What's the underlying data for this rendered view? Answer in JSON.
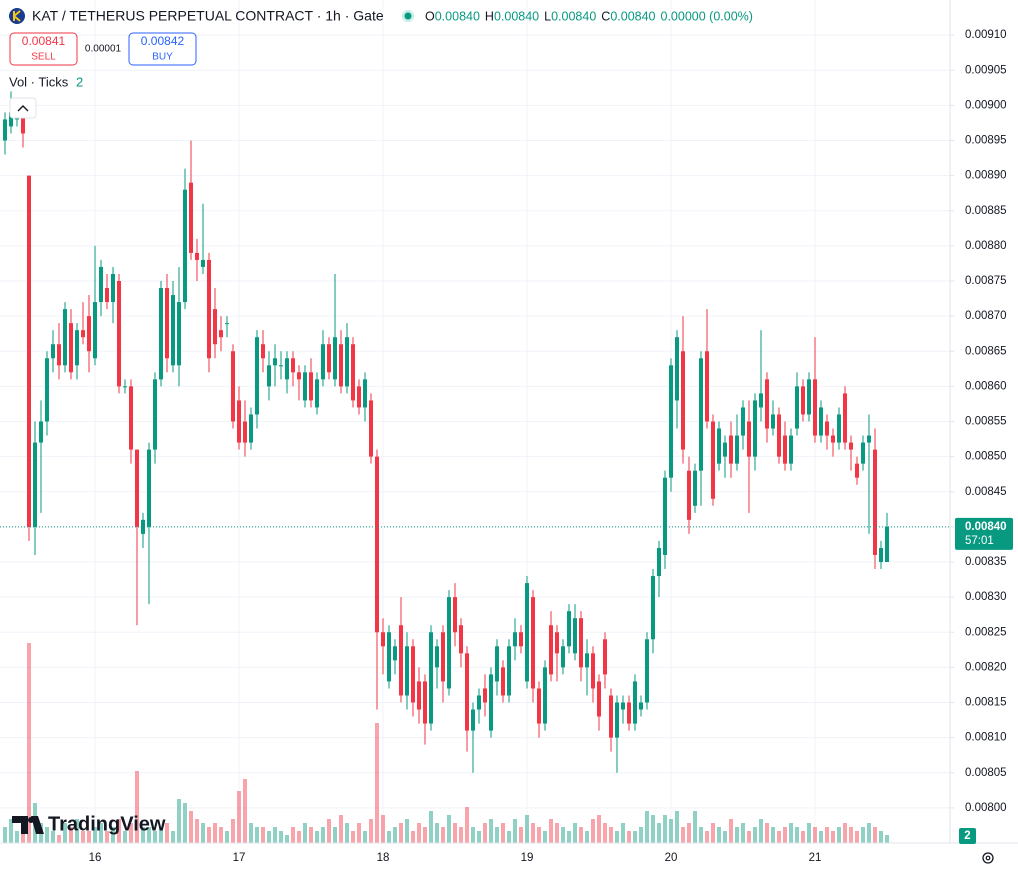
{
  "chart_data": {
    "type": "candlestick",
    "title": "KAT / TETHERUS PERPETUAL CONTRACT · 1h · Gate",
    "readout": [
      {
        "key": "O",
        "value": "0.00840"
      },
      {
        "key": "H",
        "value": "0.00840"
      },
      {
        "key": "L",
        "value": "0.00840"
      },
      {
        "key": "C",
        "value": "0.00840"
      }
    ],
    "change": "0.00000 (0.00%)",
    "order_panel": {
      "sell_price": "0.00841",
      "sell_label": "SELL",
      "spread": "0.00001",
      "buy_price": "0.00842",
      "buy_label": "BUY"
    },
    "volume_label": "Vol · Ticks",
    "watermark": "TradingView",
    "up_color": "#089981",
    "down_color": "#f23645",
    "grid": true,
    "last_price": {
      "value": 0.0084,
      "label": "0.00840"
    },
    "countdown": "57:01",
    "ylim": [
      0.00795,
      0.00915
    ],
    "yticks": [
      {
        "value": 0.008,
        "label": "0.00800"
      },
      {
        "value": 0.00805,
        "label": "0.00805"
      },
      {
        "value": 0.0081,
        "label": "0.00810"
      },
      {
        "value": 0.00815,
        "label": "0.00815"
      },
      {
        "value": 0.0082,
        "label": "0.00820"
      },
      {
        "value": 0.00825,
        "label": "0.00825"
      },
      {
        "value": 0.0083,
        "label": "0.00830"
      },
      {
        "value": 0.00835,
        "label": "0.00835"
      },
      {
        "value": 0.0084,
        "label": "0.00840"
      },
      {
        "value": 0.00845,
        "label": "0.00845"
      },
      {
        "value": 0.0085,
        "label": "0.00850"
      },
      {
        "value": 0.00855,
        "label": "0.00855"
      },
      {
        "value": 0.0086,
        "label": "0.00860"
      },
      {
        "value": 0.00865,
        "label": "0.00865"
      },
      {
        "value": 0.0087,
        "label": "0.00870"
      },
      {
        "value": 0.00875,
        "label": "0.00875"
      },
      {
        "value": 0.0088,
        "label": "0.00880"
      },
      {
        "value": 0.00885,
        "label": "0.00885"
      },
      {
        "value": 0.0089,
        "label": "0.00890"
      },
      {
        "value": 0.00895,
        "label": "0.00895"
      },
      {
        "value": 0.009,
        "label": "0.00900"
      },
      {
        "value": 0.00905,
        "label": "0.00905"
      },
      {
        "value": 0.0091,
        "label": "0.00910"
      }
    ],
    "categories": [
      null,
      null,
      null,
      null,
      null,
      null,
      null,
      null,
      null,
      null,
      null,
      null,
      null,
      null,
      null,
      "16",
      null,
      null,
      null,
      null,
      null,
      null,
      null,
      null,
      null,
      null,
      null,
      null,
      null,
      null,
      null,
      null,
      null,
      null,
      null,
      null,
      null,
      null,
      null,
      "17",
      null,
      null,
      null,
      null,
      null,
      null,
      null,
      null,
      null,
      null,
      null,
      null,
      null,
      null,
      null,
      null,
      null,
      null,
      null,
      null,
      null,
      null,
      null,
      "18",
      null,
      null,
      null,
      null,
      null,
      null,
      null,
      null,
      null,
      null,
      null,
      null,
      null,
      null,
      null,
      null,
      null,
      null,
      null,
      null,
      null,
      null,
      null,
      "19",
      null,
      null,
      null,
      null,
      null,
      null,
      null,
      null,
      null,
      null,
      null,
      null,
      null,
      null,
      null,
      null,
      null,
      null,
      null,
      null,
      null,
      null,
      null,
      "20",
      null,
      null,
      null,
      null,
      null,
      null,
      null,
      null,
      null,
      null,
      null,
      null,
      null,
      null,
      null,
      null,
      null,
      null,
      null,
      null,
      null,
      null,
      null,
      "21",
      null,
      null,
      null,
      null,
      null,
      null,
      null,
      null,
      null,
      null,
      null,
      null
    ],
    "open": [
      0.00895,
      0.00897,
      0.00898,
      0.009,
      0.0089,
      0.0084,
      0.00852,
      0.00855,
      0.00864,
      0.00866,
      0.00863,
      0.00869,
      0.00863,
      0.00868,
      0.0087,
      0.00864,
      0.00872,
      0.00874,
      0.00872,
      0.00875,
      0.0086,
      0.0086,
      0.00851,
      0.00839,
      0.0084,
      0.00851,
      0.00861,
      0.00874,
      0.00863,
      0.00863,
      0.00872,
      0.00889,
      0.00879,
      0.00877,
      0.00878,
      0.00871,
      0.00868,
      0.00869,
      0.00865,
      0.00858,
      0.00855,
      0.00852,
      0.00856,
      0.00866,
      0.0086,
      0.00863,
      0.00863,
      0.00861,
      0.00864,
      0.00862,
      0.00858,
      0.00862,
      0.00857,
      0.00861,
      0.00866,
      0.00861,
      0.00866,
      0.0086,
      0.00866,
      0.0086,
      0.00857,
      0.00858,
      0.0085,
      0.00825,
      0.00818,
      0.00821,
      0.00826,
      0.00816,
      0.00823,
      0.00818,
      0.00818,
      0.00812,
      0.0082,
      0.00825,
      0.00817,
      0.0083,
      0.00826,
      0.00822,
      0.00811,
      0.00814,
      0.00817,
      0.00811,
      0.00818,
      0.0082,
      0.00816,
      0.00823,
      0.00825,
      0.00818,
      0.0083,
      0.00817,
      0.00812,
      0.00826,
      0.00825,
      0.0082,
      0.00823,
      0.00822,
      0.00827,
      0.0082,
      0.00822,
      0.00818,
      0.00824,
      0.00816,
      0.0081,
      0.00814,
      0.00815,
      0.00812,
      0.00814,
      0.00815,
      0.00824,
      0.00833,
      0.00836,
      0.00847,
      0.00858,
      0.00865,
      0.00848,
      0.00843,
      0.00848,
      0.00865,
      0.00855,
      0.00849,
      0.0085,
      0.00853,
      0.00849,
      0.00853,
      0.00855,
      0.0085,
      0.00857,
      0.00861,
      0.00854,
      0.00856,
      0.00853,
      0.00849,
      0.00854,
      0.0086,
      0.00856,
      0.00861,
      0.00853,
      0.00855,
      0.00853,
      0.00852,
      0.00859,
      0.00852,
      0.00849,
      0.00849,
      0.00852,
      0.00851,
      0.00835,
      0.00835
    ],
    "high": [
      0.00899,
      0.00902,
      0.009,
      0.00901,
      0.0089,
      0.00855,
      0.00858,
      0.00865,
      0.00868,
      0.00869,
      0.00872,
      0.00871,
      0.00869,
      0.00872,
      0.00873,
      0.0088,
      0.00878,
      0.00876,
      0.00877,
      0.00876,
      0.00861,
      0.00861,
      0.00851,
      0.00842,
      0.00852,
      0.00862,
      0.00875,
      0.00876,
      0.00875,
      0.00877,
      0.00891,
      0.00895,
      0.00881,
      0.00886,
      0.00879,
      0.00874,
      0.0087,
      0.0087,
      0.00866,
      0.0086,
      0.00858,
      0.00857,
      0.00868,
      0.00868,
      0.00865,
      0.00866,
      0.00865,
      0.00865,
      0.00865,
      0.00863,
      0.00863,
      0.00864,
      0.00862,
      0.00868,
      0.00867,
      0.00876,
      0.00868,
      0.00869,
      0.00867,
      0.00861,
      0.00862,
      0.00859,
      0.00851,
      0.00827,
      0.00826,
      0.00824,
      0.0083,
      0.00825,
      0.00824,
      0.0082,
      0.00819,
      0.00826,
      0.00824,
      0.00826,
      0.00831,
      0.00832,
      0.00827,
      0.00823,
      0.00815,
      0.00817,
      0.00819,
      0.0082,
      0.00824,
      0.00821,
      0.00824,
      0.00827,
      0.00826,
      0.00833,
      0.00831,
      0.00818,
      0.00821,
      0.00828,
      0.00826,
      0.00824,
      0.00829,
      0.00829,
      0.00828,
      0.00824,
      0.00823,
      0.00819,
      0.00825,
      0.00817,
      0.00816,
      0.00816,
      0.00816,
      0.00819,
      0.00816,
      0.00825,
      0.00834,
      0.00838,
      0.00848,
      0.00864,
      0.00868,
      0.0087,
      0.0085,
      0.00849,
      0.00865,
      0.00871,
      0.00856,
      0.00855,
      0.00853,
      0.00855,
      0.00856,
      0.00858,
      0.00858,
      0.00859,
      0.00868,
      0.00862,
      0.00858,
      0.00857,
      0.00855,
      0.00854,
      0.00862,
      0.00861,
      0.00862,
      0.00867,
      0.00858,
      0.00856,
      0.00854,
      0.00857,
      0.0086,
      0.00853,
      0.0085,
      0.00853,
      0.00856,
      0.00854,
      0.00838,
      0.00842
    ],
    "low": [
      0.00893,
      0.00896,
      0.00897,
      0.00894,
      0.00838,
      0.00836,
      0.00842,
      0.00853,
      0.00862,
      0.00861,
      0.00862,
      0.00861,
      0.00861,
      0.00866,
      0.00862,
      0.00863,
      0.0087,
      0.00871,
      0.00869,
      0.00859,
      0.00859,
      0.00849,
      0.00826,
      0.00837,
      0.00829,
      0.00849,
      0.0086,
      0.00862,
      0.00862,
      0.0086,
      0.00871,
      0.00878,
      0.00875,
      0.00876,
      0.00862,
      0.00864,
      0.00865,
      0.00867,
      0.00854,
      0.00851,
      0.0085,
      0.00851,
      0.00854,
      0.00862,
      0.00858,
      0.0086,
      0.00861,
      0.00859,
      0.0086,
      0.00858,
      0.00857,
      0.00857,
      0.00856,
      0.0086,
      0.00861,
      0.0086,
      0.00859,
      0.00859,
      0.00857,
      0.00856,
      0.00855,
      0.00849,
      0.00814,
      0.00819,
      0.00817,
      0.00819,
      0.00815,
      0.00814,
      0.00813,
      0.00812,
      0.00809,
      0.00811,
      0.00817,
      0.00815,
      0.00816,
      0.00823,
      0.0082,
      0.00808,
      0.00805,
      0.00812,
      0.00813,
      0.0081,
      0.00816,
      0.00815,
      0.00815,
      0.00821,
      0.00822,
      0.00817,
      0.00815,
      0.0081,
      0.00811,
      0.00818,
      0.00818,
      0.00819,
      0.00822,
      0.00821,
      0.00818,
      0.00816,
      0.00815,
      0.00811,
      0.00817,
      0.00808,
      0.00805,
      0.00812,
      0.00811,
      0.00811,
      0.00813,
      0.00814,
      0.00822,
      0.0083,
      0.00834,
      0.00845,
      0.00854,
      0.00849,
      0.00839,
      0.00842,
      0.00843,
      0.00854,
      0.00843,
      0.00848,
      0.00847,
      0.00847,
      0.00848,
      0.00851,
      0.00842,
      0.00848,
      0.00855,
      0.00852,
      0.00853,
      0.00849,
      0.00848,
      0.00848,
      0.00853,
      0.00855,
      0.00855,
      0.00852,
      0.00852,
      0.00851,
      0.0085,
      0.00851,
      0.00851,
      0.00848,
      0.00846,
      0.00848,
      0.00839,
      0.00834,
      0.00834,
      0.00835
    ],
    "close": [
      0.00898,
      0.00899,
      0.00899,
      0.00896,
      0.0084,
      0.00852,
      0.00855,
      0.00864,
      0.00866,
      0.00863,
      0.00871,
      0.00862,
      0.00868,
      0.00867,
      0.00865,
      0.00872,
      0.00877,
      0.00872,
      0.00876,
      0.0086,
      0.0086,
      0.00851,
      0.0084,
      0.00841,
      0.00851,
      0.00861,
      0.00874,
      0.00864,
      0.00873,
      0.00872,
      0.00888,
      0.00879,
      0.00878,
      0.00878,
      0.00864,
      0.00866,
      0.00867,
      0.00869,
      0.00855,
      0.00852,
      0.00852,
      0.00856,
      0.00867,
      0.00864,
      0.00863,
      0.00864,
      0.00863,
      0.00864,
      0.00862,
      0.00861,
      0.00862,
      0.00858,
      0.00861,
      0.00866,
      0.00862,
      0.00867,
      0.0086,
      0.00867,
      0.00858,
      0.00857,
      0.00861,
      0.0085,
      0.00825,
      0.00823,
      0.00825,
      0.00823,
      0.00816,
      0.00823,
      0.00815,
      0.00814,
      0.00812,
      0.00825,
      0.00823,
      0.00818,
      0.0083,
      0.00825,
      0.00822,
      0.00811,
      0.00814,
      0.00816,
      0.00815,
      0.00819,
      0.00823,
      0.00816,
      0.00823,
      0.00825,
      0.00823,
      0.00832,
      0.00817,
      0.00812,
      0.0082,
      0.00819,
      0.00822,
      0.00823,
      0.00828,
      0.00827,
      0.0082,
      0.00822,
      0.00817,
      0.00813,
      0.00819,
      0.0081,
      0.00815,
      0.00815,
      0.00812,
      0.00818,
      0.00815,
      0.00824,
      0.00833,
      0.00837,
      0.00847,
      0.00863,
      0.00867,
      0.00851,
      0.00841,
      0.00848,
      0.00864,
      0.00855,
      0.00844,
      0.00854,
      0.00852,
      0.00849,
      0.00853,
      0.00857,
      0.0085,
      0.00858,
      0.00859,
      0.00854,
      0.00856,
      0.0085,
      0.00849,
      0.00853,
      0.0086,
      0.00856,
      0.00861,
      0.00853,
      0.00857,
      0.00853,
      0.00852,
      0.00856,
      0.00852,
      0.00851,
      0.00847,
      0.00852,
      0.00853,
      0.00836,
      0.00837,
      0.0084
    ],
    "volume": [
      4,
      6,
      3,
      4,
      50,
      10,
      5,
      4,
      3,
      2,
      5,
      4,
      6,
      3,
      3,
      4,
      5,
      3,
      4,
      6,
      3,
      5,
      18,
      4,
      4,
      3,
      4,
      5,
      3,
      11,
      10,
      8,
      6,
      5,
      4,
      5,
      4,
      3,
      6,
      13,
      16,
      5,
      4,
      4,
      3,
      4,
      3,
      2,
      4,
      3,
      5,
      4,
      3,
      4,
      6,
      4,
      7,
      5,
      3,
      5,
      3,
      6,
      30,
      7,
      3,
      4,
      5,
      6,
      3,
      5,
      4,
      8,
      5,
      4,
      7,
      5,
      4,
      9,
      4,
      3,
      5,
      6,
      4,
      5,
      3,
      6,
      4,
      7,
      5,
      4,
      3,
      6,
      5,
      4,
      3,
      5,
      4,
      3,
      6,
      7,
      5,
      4,
      3,
      5,
      3,
      3,
      4,
      8,
      7,
      5,
      7,
      6,
      8,
      4,
      5,
      8,
      4,
      3,
      5,
      4,
      3,
      6,
      4,
      5,
      3,
      4,
      6,
      5,
      4,
      3,
      4,
      5,
      4,
      3,
      5,
      4,
      3,
      4,
      3,
      4,
      5,
      4,
      3,
      4,
      5,
      4,
      3,
      2
    ]
  }
}
